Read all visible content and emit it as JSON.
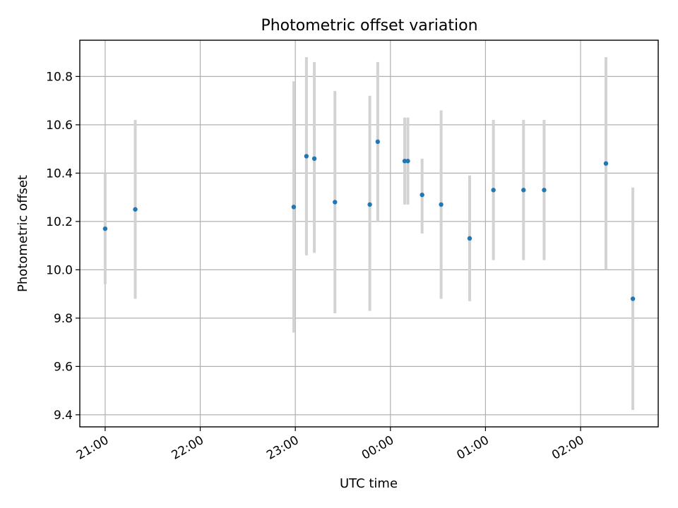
{
  "chart_data": {
    "type": "scatter",
    "title": "Photometric offset variation",
    "xlabel": "UTC time",
    "ylabel": "Photometric offset",
    "x_range": [
      "20:44",
      "02:49"
    ],
    "ylim": [
      9.35,
      10.95
    ],
    "x_ticks": [
      "21:00",
      "22:00",
      "23:00",
      "00:00",
      "01:00",
      "02:00"
    ],
    "y_ticks": [
      "9.4",
      "9.6",
      "9.8",
      "10.0",
      "10.2",
      "10.4",
      "10.6",
      "10.8"
    ],
    "grid": true,
    "point_color": "#1f77b4",
    "errorbar_color": "#d3d3d3",
    "points": [
      {
        "time": "21:00",
        "value": 10.17,
        "err_low": 9.94,
        "err_high": 10.4
      },
      {
        "time": "21:19",
        "value": 10.25,
        "err_low": 9.88,
        "err_high": 10.62
      },
      {
        "time": "22:59",
        "value": 10.26,
        "err_low": 9.74,
        "err_high": 10.78
      },
      {
        "time": "23:07",
        "value": 10.47,
        "err_low": 10.06,
        "err_high": 10.88
      },
      {
        "time": "23:12",
        "value": 10.46,
        "err_low": 10.07,
        "err_high": 10.86
      },
      {
        "time": "23:25",
        "value": 10.28,
        "err_low": 9.82,
        "err_high": 10.74
      },
      {
        "time": "23:47",
        "value": 10.27,
        "err_low": 9.83,
        "err_high": 10.72
      },
      {
        "time": "23:52",
        "value": 10.53,
        "err_low": 10.2,
        "err_high": 10.86
      },
      {
        "time": "00:09",
        "value": 10.45,
        "err_low": 10.27,
        "err_high": 10.63
      },
      {
        "time": "00:11",
        "value": 10.45,
        "err_low": 10.27,
        "err_high": 10.63
      },
      {
        "time": "00:20",
        "value": 10.31,
        "err_low": 10.15,
        "err_high": 10.46
      },
      {
        "time": "00:32",
        "value": 10.27,
        "err_low": 9.88,
        "err_high": 10.66
      },
      {
        "time": "00:50",
        "value": 10.13,
        "err_low": 9.87,
        "err_high": 10.39
      },
      {
        "time": "01:05",
        "value": 10.33,
        "err_low": 10.04,
        "err_high": 10.62
      },
      {
        "time": "01:24",
        "value": 10.33,
        "err_low": 10.04,
        "err_high": 10.62
      },
      {
        "time": "01:37",
        "value": 10.33,
        "err_low": 10.04,
        "err_high": 10.62
      },
      {
        "time": "02:16",
        "value": 10.44,
        "err_low": 10.0,
        "err_high": 10.88
      },
      {
        "time": "02:33",
        "value": 9.88,
        "err_low": 9.42,
        "err_high": 10.34
      }
    ]
  }
}
